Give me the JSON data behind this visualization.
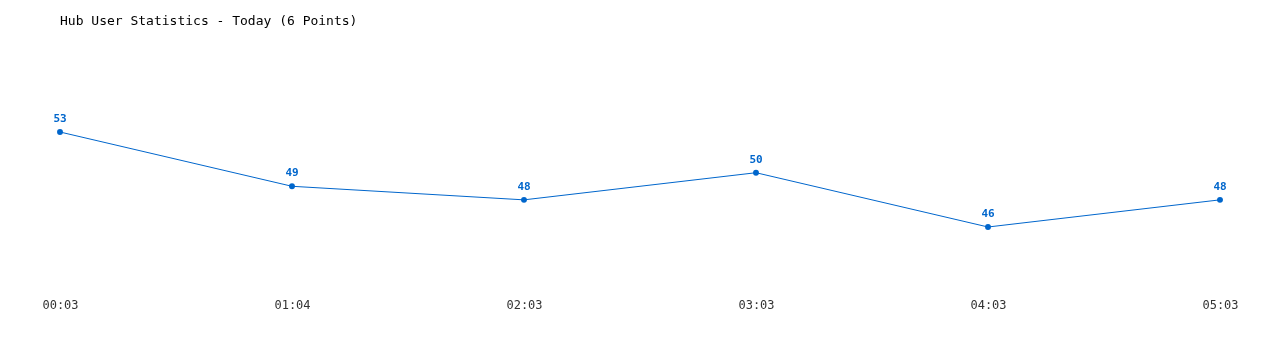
{
  "chart_data": {
    "type": "line",
    "title": "Hub User Statistics - Today (6 Points)",
    "categories": [
      "00:03",
      "01:04",
      "02:03",
      "03:03",
      "04:03",
      "05:03"
    ],
    "values": [
      53,
      49,
      48,
      50,
      46,
      48
    ],
    "color": "#0066cc",
    "data_labels": true,
    "marker": "circle",
    "grid": false
  }
}
